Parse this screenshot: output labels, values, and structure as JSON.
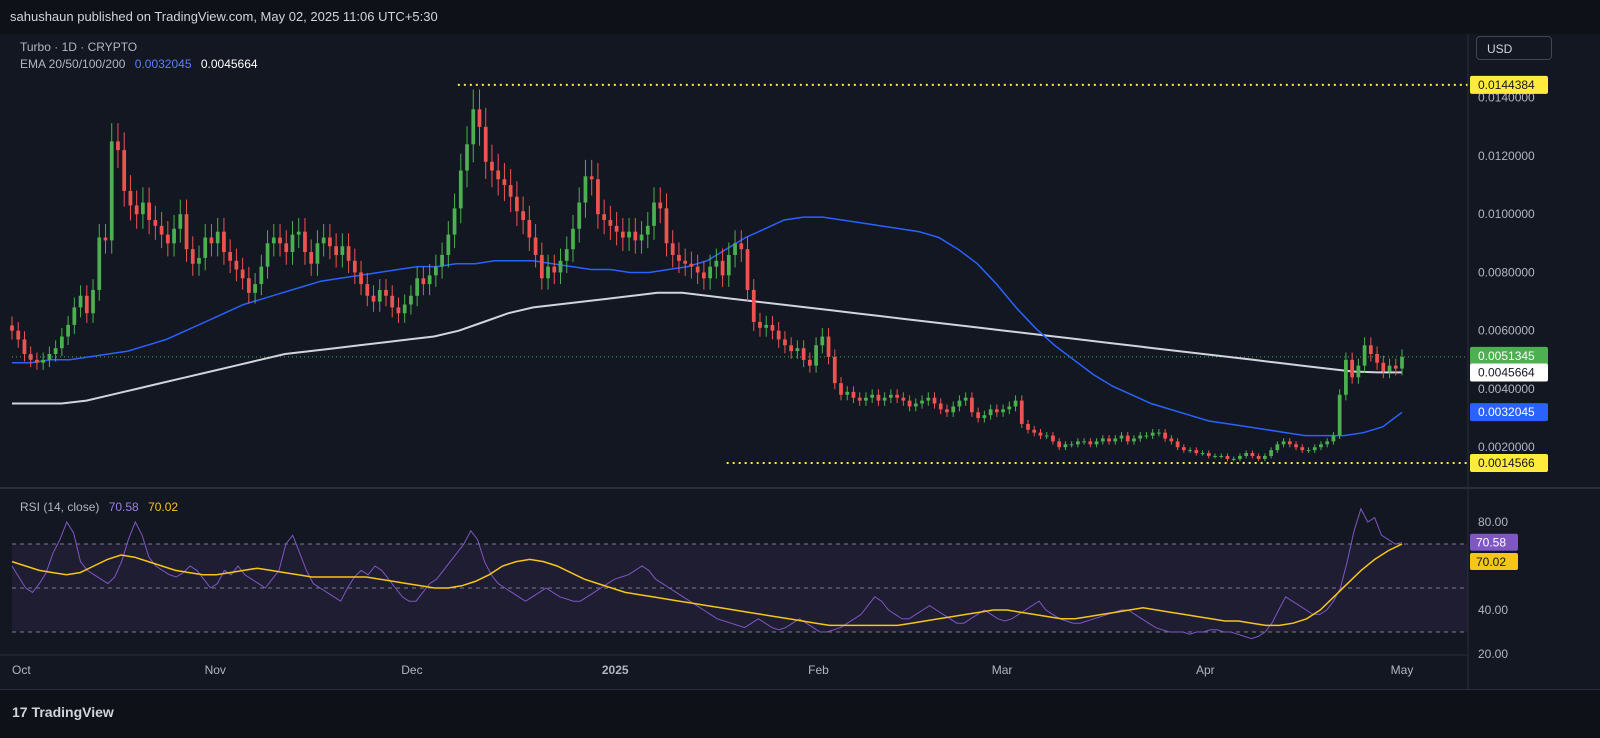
{
  "header": {
    "publisher": "sahushaun published on TradingView.com, May 02, 2025 11:06 UTC+5:30"
  },
  "legend": {
    "symbol": "Turbo · 1D · CRYPTO",
    "ema_label": "EMA 20/50/100/200",
    "ema_value_blue": "0.0032045",
    "ema_value_white": "0.0045664",
    "rsi_label": "RSI (14, close)",
    "rsi_value": "70.58",
    "rsi_ma_value": "70.02"
  },
  "currency_button": "USD",
  "footer": {
    "brand": "TradingView",
    "logo_mark": "17"
  },
  "colors": {
    "up": "#26a69a",
    "up_bright": "#4caf50",
    "down": "#ef5350",
    "ema_blue": "#2962ff",
    "ema_white": "#d1d4dc",
    "rsi_line": "#7e57c2",
    "rsi_ma": "#f5c518",
    "level_yellow": "#ffeb3b"
  },
  "chart_data": [
    {
      "type": "candlestick",
      "title": "Turbo · 1D · CRYPTO",
      "currency": "USD",
      "ylim": [
        0.0006,
        0.0155
      ],
      "y_ticks": [
        "0.0140000",
        "0.0120000",
        "0.0100000",
        "0.0080000",
        "0.0060000",
        "0.0040000",
        "0.0020000"
      ],
      "x_ticks": [
        "Oct",
        "Nov",
        "Dec",
        "2025",
        "Feb",
        "Mar",
        "Apr",
        "May"
      ],
      "x_tick_days": [
        0,
        31,
        61,
        92,
        123,
        151,
        182,
        212
      ],
      "price_labels": [
        {
          "label": "0.0144384",
          "value": 0.0144384,
          "role": "resistance"
        },
        {
          "label": "0.0051345",
          "value": 0.0051345,
          "role": "last-price"
        },
        {
          "label": "0.0045664",
          "value": 0.0045664,
          "role": "ema-200"
        },
        {
          "label": "0.0032045",
          "value": 0.0032045,
          "role": "ema-50"
        },
        {
          "label": "0.0014566",
          "value": 0.0014566,
          "role": "support"
        }
      ],
      "levels": [
        {
          "value": 0.0144384,
          "from_day": 68,
          "to_day": 232
        },
        {
          "value": 0.0014566,
          "from_day": 109,
          "to_day": 232
        }
      ],
      "close": [
        0.006,
        0.0057,
        0.0052,
        0.005,
        0.0049,
        0.005,
        0.0052,
        0.0054,
        0.0058,
        0.0062,
        0.0068,
        0.0072,
        0.0066,
        0.0074,
        0.0092,
        0.0091,
        0.0125,
        0.0122,
        0.0108,
        0.0103,
        0.01,
        0.0104,
        0.0098,
        0.0096,
        0.0093,
        0.009,
        0.0095,
        0.01,
        0.0088,
        0.0083,
        0.0085,
        0.0092,
        0.009,
        0.0094,
        0.0087,
        0.0084,
        0.0081,
        0.0078,
        0.0073,
        0.0076,
        0.0082,
        0.009,
        0.0092,
        0.009,
        0.0087,
        0.0093,
        0.0094,
        0.0087,
        0.0083,
        0.009,
        0.0092,
        0.0089,
        0.0086,
        0.0089,
        0.0084,
        0.008,
        0.0076,
        0.0072,
        0.007,
        0.0074,
        0.0072,
        0.0068,
        0.0066,
        0.0069,
        0.0072,
        0.0078,
        0.0076,
        0.0079,
        0.0082,
        0.0086,
        0.0093,
        0.0102,
        0.0115,
        0.0124,
        0.0136,
        0.013,
        0.0118,
        0.0115,
        0.0112,
        0.011,
        0.0106,
        0.0101,
        0.0098,
        0.0092,
        0.0086,
        0.0078,
        0.0082,
        0.008,
        0.0084,
        0.0088,
        0.0095,
        0.0104,
        0.0113,
        0.0112,
        0.01,
        0.0098,
        0.0096,
        0.0094,
        0.0092,
        0.0094,
        0.0091,
        0.0093,
        0.0096,
        0.0104,
        0.0102,
        0.009,
        0.0086,
        0.0084,
        0.0083,
        0.0082,
        0.008,
        0.0078,
        0.0082,
        0.0084,
        0.0079,
        0.0086,
        0.009,
        0.0088,
        0.0074,
        0.0063,
        0.0061,
        0.0062,
        0.006,
        0.0057,
        0.0055,
        0.0053,
        0.0054,
        0.005,
        0.0048,
        0.0055,
        0.0058,
        0.0051,
        0.0042,
        0.0038,
        0.0039,
        0.0037,
        0.0036,
        0.0037,
        0.0038,
        0.0036,
        0.0037,
        0.0038,
        0.0037,
        0.0036,
        0.0034,
        0.0035,
        0.0036,
        0.0037,
        0.0035,
        0.0033,
        0.0032,
        0.0034,
        0.0036,
        0.0037,
        0.0032,
        0.003,
        0.0031,
        0.0033,
        0.0032,
        0.0033,
        0.0034,
        0.0036,
        0.0028,
        0.0026,
        0.0025,
        0.0024,
        0.0024,
        0.0022,
        0.002,
        0.0021,
        0.0021,
        0.0022,
        0.0022,
        0.0021,
        0.0022,
        0.0023,
        0.0022,
        0.0023,
        0.0024,
        0.0022,
        0.0023,
        0.0024,
        0.0024,
        0.0025,
        0.0025,
        0.0023,
        0.0022,
        0.002,
        0.0019,
        0.0019,
        0.0018,
        0.0018,
        0.0017,
        0.0017,
        0.0017,
        0.0016,
        0.0016,
        0.0017,
        0.0018,
        0.0017,
        0.0016,
        0.0017,
        0.0019,
        0.0021,
        0.0022,
        0.0021,
        0.002,
        0.0019,
        0.0019,
        0.002,
        0.0021,
        0.0022,
        0.0024,
        0.0038,
        0.005,
        0.0044,
        0.0048,
        0.0055,
        0.0052,
        0.0049,
        0.0046,
        0.0048,
        0.0047,
        0.0051
      ],
      "ema_50": [
        0.0049,
        0.0049,
        0.005,
        0.005,
        0.0051,
        0.0052,
        0.0053,
        0.0055,
        0.0057,
        0.006,
        0.0063,
        0.0066,
        0.0069,
        0.0071,
        0.0073,
        0.0075,
        0.0077,
        0.0078,
        0.0079,
        0.008,
        0.0081,
        0.0082,
        0.0082,
        0.0083,
        0.0083,
        0.0084,
        0.0084,
        0.0084,
        0.0083,
        0.0082,
        0.0081,
        0.0081,
        0.008,
        0.008,
        0.0081,
        0.0082,
        0.0084,
        0.0088,
        0.0092,
        0.0095,
        0.0098,
        0.0099,
        0.0099,
        0.0098,
        0.0097,
        0.0096,
        0.0095,
        0.0094,
        0.0092,
        0.0088,
        0.0083,
        0.0076,
        0.0068,
        0.0061,
        0.0055,
        0.005,
        0.0045,
        0.0041,
        0.0038,
        0.0035,
        0.0033,
        0.0031,
        0.0029,
        0.0028,
        0.0027,
        0.0026,
        0.0025,
        0.0024,
        0.0024,
        0.0024,
        0.0025,
        0.0027,
        0.0032
      ],
      "ema_200": [
        0.0035,
        0.0035,
        0.0035,
        0.0036,
        0.0038,
        0.004,
        0.0042,
        0.0044,
        0.0046,
        0.0048,
        0.005,
        0.0052,
        0.0053,
        0.0054,
        0.0055,
        0.0056,
        0.0057,
        0.0058,
        0.006,
        0.0063,
        0.0066,
        0.0068,
        0.0069,
        0.007,
        0.0071,
        0.0072,
        0.0073,
        0.0073,
        0.0072,
        0.0071,
        0.007,
        0.0069,
        0.0068,
        0.0067,
        0.0066,
        0.0065,
        0.0064,
        0.0063,
        0.0062,
        0.0061,
        0.006,
        0.0059,
        0.0058,
        0.0057,
        0.0056,
        0.0055,
        0.0054,
        0.0053,
        0.0052,
        0.0051,
        0.005,
        0.0049,
        0.0048,
        0.0047,
        0.0046,
        0.00457,
        0.00457
      ]
    },
    {
      "type": "line",
      "title": "RSI (14, close)",
      "ylim": [
        20,
        90
      ],
      "y_ticks": [
        "80.00",
        "40.00",
        "20.00"
      ],
      "bands": [
        70,
        50,
        30
      ],
      "series": [
        {
          "name": "RSI",
          "values": [
            60,
            55,
            50,
            48,
            52,
            57,
            66,
            72,
            80,
            75,
            62,
            58,
            56,
            54,
            52,
            55,
            62,
            72,
            80,
            74,
            64,
            60,
            58,
            56,
            55,
            57,
            60,
            58,
            54,
            50,
            52,
            58,
            56,
            60,
            56,
            54,
            52,
            50,
            54,
            58,
            70,
            74,
            66,
            58,
            52,
            50,
            48,
            46,
            44,
            50,
            55,
            58,
            56,
            60,
            58,
            54,
            50,
            46,
            44,
            44,
            48,
            52,
            54,
            58,
            62,
            66,
            70,
            76,
            72,
            62,
            56,
            52,
            50,
            48,
            46,
            44,
            46,
            48,
            50,
            48,
            46,
            45,
            44,
            44,
            46,
            48,
            50,
            52,
            54,
            55,
            56,
            58,
            60,
            58,
            54,
            52,
            50,
            48,
            46,
            44,
            42,
            40,
            38,
            36,
            35,
            34,
            33,
            32,
            34,
            36,
            34,
            32,
            31,
            32,
            34,
            36,
            34,
            32,
            30,
            30,
            31,
            32,
            34,
            36,
            38,
            42,
            46,
            44,
            40,
            38,
            36,
            36,
            38,
            40,
            42,
            40,
            38,
            36,
            34,
            34,
            36,
            38,
            40,
            38,
            36,
            35,
            36,
            38,
            40,
            42,
            44,
            40,
            38,
            36,
            35,
            34,
            34,
            35,
            36,
            37,
            38,
            39,
            40,
            40,
            38,
            36,
            34,
            32,
            31,
            30,
            30,
            30,
            29,
            30,
            30,
            31,
            31,
            30,
            30,
            29,
            28,
            27,
            28,
            30,
            34,
            40,
            46,
            44,
            42,
            40,
            38,
            38,
            40,
            44,
            50,
            62,
            76,
            86,
            80,
            82,
            74,
            72,
            70,
            70.58
          ]
        },
        {
          "name": "RSI MA",
          "values": [
            62,
            60,
            58,
            57,
            56,
            57,
            60,
            63,
            65,
            64,
            62,
            60,
            58,
            57,
            56,
            56,
            57,
            58,
            59,
            58,
            57,
            56,
            55,
            55,
            55,
            55,
            55,
            54,
            53,
            52,
            51,
            50,
            50,
            51,
            53,
            56,
            60,
            62,
            63,
            62,
            60,
            57,
            54,
            52,
            50,
            48,
            47,
            46,
            45,
            44,
            43,
            42,
            41,
            40,
            39,
            38,
            37,
            36,
            35,
            34,
            33,
            33,
            33,
            33,
            33,
            33,
            34,
            35,
            36,
            37,
            38,
            39,
            40,
            40,
            39,
            38,
            37,
            36,
            36,
            37,
            38,
            39,
            40,
            41,
            40,
            39,
            38,
            37,
            36,
            35,
            35,
            34,
            33,
            33,
            34,
            36,
            40,
            46,
            52,
            58,
            63,
            67,
            70.02
          ]
        }
      ]
    }
  ]
}
